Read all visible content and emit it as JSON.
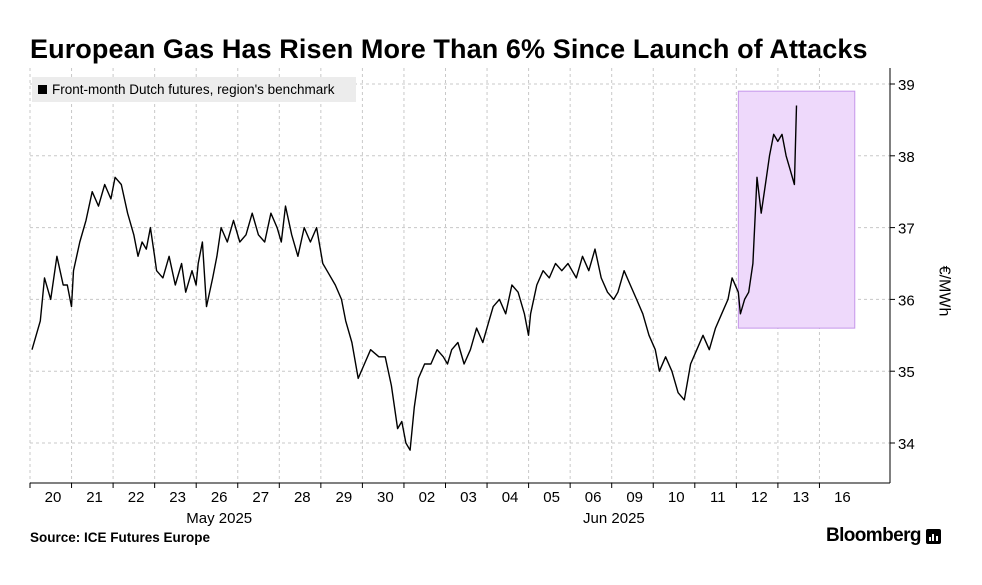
{
  "title": "European Gas Has Risen More Than 6% Since Launch of Attacks",
  "legend": {
    "label": "Front-month Dutch futures, region's benchmark"
  },
  "source": "Source: ICE Futures Europe",
  "brand": "Bloomberg",
  "colors": {
    "line": "#000000",
    "highlight_fill": "#eed9fb",
    "highlight_stroke": "#c596ea",
    "grid": "#c8c8c8"
  },
  "chart_data": {
    "type": "line",
    "title": "European Gas Has Risen More Than 6% Since Launch of Attacks",
    "ylabel": "€/MWh",
    "ylim": [
      33.6,
      39.1
    ],
    "yticks": [
      34,
      35,
      36,
      37,
      38,
      39
    ],
    "y_axis_position": "right",
    "grid": true,
    "legend_position": "top-left",
    "x_days": [
      "20",
      "21",
      "22",
      "23",
      "26",
      "27",
      "28",
      "29",
      "30",
      "02",
      "03",
      "04",
      "05",
      "06",
      "09",
      "10",
      "11",
      "12",
      "13",
      "16"
    ],
    "x_months": [
      {
        "label": "May 2025",
        "under_days": [
          "22",
          "28"
        ]
      },
      {
        "label": "Jun 2025",
        "under_days": [
          "06",
          "09"
        ]
      }
    ],
    "highlight": {
      "from": "12",
      "to": "16",
      "y_range": [
        35.6,
        38.9
      ]
    },
    "series": [
      {
        "values": [
          [
            0,
            35.3
          ],
          [
            0.2,
            35.7
          ],
          [
            0.3,
            36.3
          ],
          [
            0.45,
            36.0
          ],
          [
            0.6,
            36.6
          ],
          [
            0.75,
            36.2
          ],
          [
            0.85,
            36.2
          ],
          [
            0.95,
            35.9
          ],
          [
            1.0,
            36.4
          ],
          [
            1.15,
            36.8
          ],
          [
            1.3,
            37.1
          ],
          [
            1.45,
            37.5
          ],
          [
            1.6,
            37.3
          ],
          [
            1.75,
            37.6
          ],
          [
            1.9,
            37.4
          ],
          [
            2.0,
            37.7
          ],
          [
            2.15,
            37.6
          ],
          [
            2.3,
            37.2
          ],
          [
            2.45,
            36.9
          ],
          [
            2.55,
            36.6
          ],
          [
            2.65,
            36.8
          ],
          [
            2.75,
            36.7
          ],
          [
            2.85,
            37.0
          ],
          [
            2.95,
            36.6
          ],
          [
            3.0,
            36.4
          ],
          [
            3.15,
            36.3
          ],
          [
            3.3,
            36.6
          ],
          [
            3.45,
            36.2
          ],
          [
            3.6,
            36.5
          ],
          [
            3.7,
            36.1
          ],
          [
            3.85,
            36.4
          ],
          [
            3.95,
            36.2
          ],
          [
            4.0,
            36.5
          ],
          [
            4.1,
            36.8
          ],
          [
            4.2,
            35.9
          ],
          [
            4.35,
            36.3
          ],
          [
            4.45,
            36.6
          ],
          [
            4.55,
            37.0
          ],
          [
            4.7,
            36.8
          ],
          [
            4.85,
            37.1
          ],
          [
            5.0,
            36.8
          ],
          [
            5.15,
            36.9
          ],
          [
            5.3,
            37.2
          ],
          [
            5.45,
            36.9
          ],
          [
            5.6,
            36.8
          ],
          [
            5.75,
            37.2
          ],
          [
            5.9,
            37.0
          ],
          [
            6.0,
            36.8
          ],
          [
            6.1,
            37.3
          ],
          [
            6.25,
            36.9
          ],
          [
            6.4,
            36.6
          ],
          [
            6.55,
            37.0
          ],
          [
            6.7,
            36.8
          ],
          [
            6.85,
            37.0
          ],
          [
            7.0,
            36.5
          ],
          [
            7.1,
            36.4
          ],
          [
            7.3,
            36.2
          ],
          [
            7.45,
            36.0
          ],
          [
            7.55,
            35.7
          ],
          [
            7.7,
            35.4
          ],
          [
            7.85,
            34.9
          ],
          [
            8.0,
            35.1
          ],
          [
            8.15,
            35.3
          ],
          [
            8.35,
            35.2
          ],
          [
            8.5,
            35.2
          ],
          [
            8.65,
            34.8
          ],
          [
            8.8,
            34.2
          ],
          [
            8.9,
            34.3
          ],
          [
            9.0,
            34.0
          ],
          [
            9.1,
            33.9
          ],
          [
            9.2,
            34.5
          ],
          [
            9.3,
            34.9
          ],
          [
            9.45,
            35.1
          ],
          [
            9.6,
            35.1
          ],
          [
            9.75,
            35.3
          ],
          [
            9.9,
            35.2
          ],
          [
            10.0,
            35.1
          ],
          [
            10.1,
            35.3
          ],
          [
            10.25,
            35.4
          ],
          [
            10.4,
            35.1
          ],
          [
            10.55,
            35.3
          ],
          [
            10.7,
            35.6
          ],
          [
            10.85,
            35.4
          ],
          [
            11.0,
            35.7
          ],
          [
            11.1,
            35.9
          ],
          [
            11.25,
            36.0
          ],
          [
            11.4,
            35.8
          ],
          [
            11.55,
            36.2
          ],
          [
            11.7,
            36.1
          ],
          [
            11.85,
            35.8
          ],
          [
            11.95,
            35.5
          ],
          [
            12.0,
            35.8
          ],
          [
            12.15,
            36.2
          ],
          [
            12.3,
            36.4
          ],
          [
            12.45,
            36.3
          ],
          [
            12.6,
            36.5
          ],
          [
            12.75,
            36.4
          ],
          [
            12.9,
            36.5
          ],
          [
            13.0,
            36.4
          ],
          [
            13.1,
            36.3
          ],
          [
            13.25,
            36.6
          ],
          [
            13.4,
            36.4
          ],
          [
            13.55,
            36.7
          ],
          [
            13.7,
            36.3
          ],
          [
            13.85,
            36.1
          ],
          [
            14.0,
            36.0
          ],
          [
            14.1,
            36.1
          ],
          [
            14.25,
            36.4
          ],
          [
            14.4,
            36.2
          ],
          [
            14.55,
            36.0
          ],
          [
            14.7,
            35.8
          ],
          [
            14.85,
            35.5
          ],
          [
            15.0,
            35.3
          ],
          [
            15.1,
            35.0
          ],
          [
            15.25,
            35.2
          ],
          [
            15.4,
            35.0
          ],
          [
            15.55,
            34.7
          ],
          [
            15.7,
            34.6
          ],
          [
            15.85,
            35.1
          ],
          [
            16.0,
            35.3
          ],
          [
            16.15,
            35.5
          ],
          [
            16.3,
            35.3
          ],
          [
            16.45,
            35.6
          ],
          [
            16.6,
            35.8
          ],
          [
            16.75,
            36.0
          ],
          [
            16.85,
            36.3
          ],
          [
            17.0,
            36.1
          ],
          [
            17.05,
            35.8
          ],
          [
            17.15,
            36.0
          ],
          [
            17.25,
            36.1
          ],
          [
            17.35,
            36.5
          ],
          [
            17.45,
            37.7
          ],
          [
            17.55,
            37.2
          ],
          [
            17.65,
            37.6
          ],
          [
            17.75,
            38.0
          ],
          [
            17.85,
            38.3
          ],
          [
            17.95,
            38.2
          ],
          [
            18.05,
            38.3
          ],
          [
            18.15,
            38.0
          ],
          [
            18.25,
            37.8
          ],
          [
            18.35,
            37.6
          ],
          [
            18.4,
            38.7
          ]
        ]
      }
    ]
  }
}
